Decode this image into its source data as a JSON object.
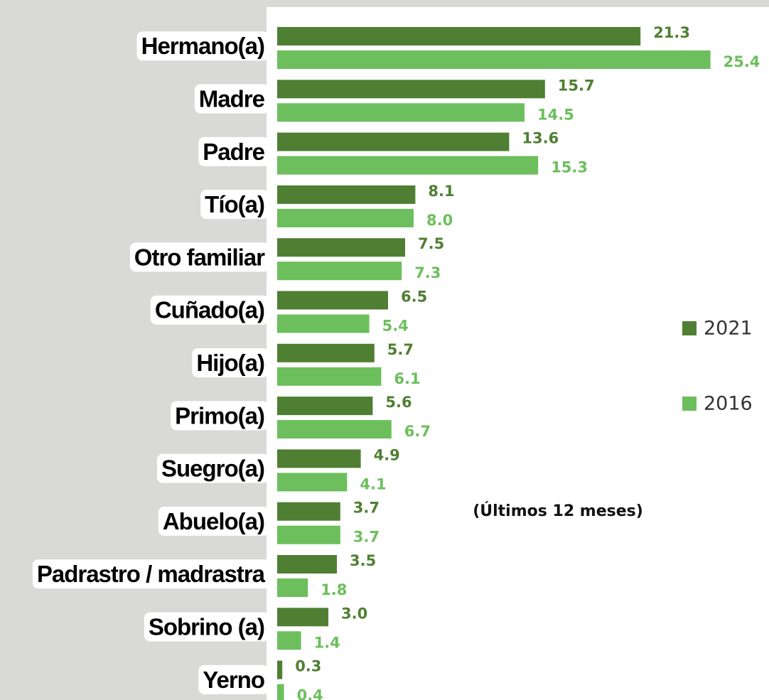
{
  "chart_data": {
    "type": "barh",
    "annotation": "(Últimos 12 meses)",
    "categories": [
      "Hermano(a)",
      "Madre",
      "Padre",
      "Tío(a)",
      "Otro familiar",
      "Cuñado(a)",
      "Hijo(a)",
      "Primo(a)",
      "Suegro(a)",
      "Abuelo(a)",
      "Padrastro / madrastra",
      "Sobrino (a)",
      "Yerno"
    ],
    "series": [
      {
        "name": "2021",
        "color": "#4f7f32",
        "values": [
          21.3,
          15.7,
          13.6,
          8.1,
          7.5,
          6.5,
          5.7,
          5.6,
          4.9,
          3.7,
          3.5,
          3.0,
          0.3
        ],
        "value_labels": [
          "21.3",
          "15.7",
          "13.6",
          "8.1",
          "7.5",
          "6.5",
          "5.7",
          "5.6",
          "4.9",
          "3.7",
          "3.5",
          "3.0",
          "0.3"
        ]
      },
      {
        "name": "2016",
        "color": "#6cbf5c",
        "values": [
          25.4,
          14.5,
          15.3,
          8.0,
          7.3,
          5.4,
          6.1,
          6.7,
          4.1,
          3.7,
          1.8,
          1.4,
          0.4
        ],
        "value_labels": [
          "25.4",
          "14.5",
          "15.3",
          "8.0",
          "7.3",
          "5.4",
          "6.1",
          "6.7",
          "4.1",
          "3.7",
          "1.8",
          "1.4",
          "0.4"
        ]
      }
    ],
    "xlim": [
      0,
      28
    ],
    "legend": "right"
  }
}
